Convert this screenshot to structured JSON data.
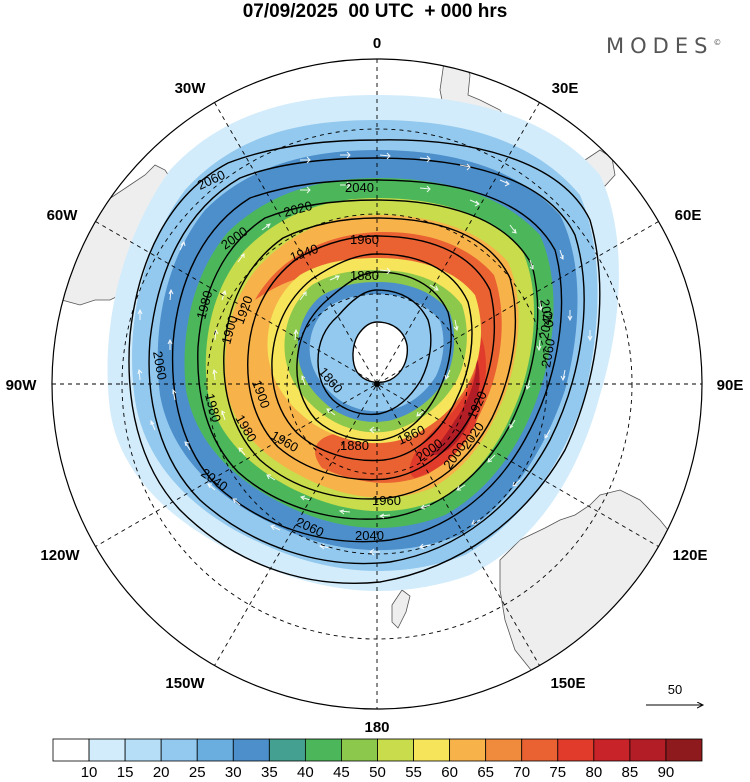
{
  "title": "07/09/2025  00 UTC  + 000 hrs",
  "logo": "MODES",
  "logo_mark": "©",
  "map": {
    "projection": "South polar stereographic",
    "longitude_labels": [
      "0",
      "30E",
      "60E",
      "90E",
      "120E",
      "150E",
      "180",
      "150W",
      "120W",
      "90W",
      "60W",
      "30W"
    ],
    "contour_labels": [
      "2060",
      "2040",
      "2020",
      "2000",
      "1980",
      "1960",
      "1940",
      "1920",
      "1900",
      "1880",
      "1860",
      "1860",
      "1880",
      "1900",
      "1920",
      "1960",
      "1980",
      "2000",
      "2020",
      "2040",
      "2060",
      "2040",
      "2060",
      "1960",
      "1980",
      "2000",
      "2020",
      "2040",
      "2060"
    ],
    "reference_vector": "50"
  },
  "colorbar": {
    "ticks": [
      "10",
      "15",
      "20",
      "25",
      "30",
      "35",
      "40",
      "45",
      "50",
      "55",
      "60",
      "65",
      "70",
      "75",
      "80",
      "85",
      "90"
    ],
    "colors": [
      "#ffffff",
      "#d3ecfb",
      "#b6dff7",
      "#93c9ee",
      "#6aaee0",
      "#4c8fcb",
      "#44a090",
      "#4cb75a",
      "#8cc84b",
      "#c8dc4c",
      "#f6e45a",
      "#f7b24a",
      "#f08a3c",
      "#ea6132",
      "#e03b2b",
      "#c9232a",
      "#b31e26",
      "#8e1a1e"
    ]
  },
  "colors": {
    "land": "#eeeeee",
    "coast": "#555555",
    "contour": "#000000",
    "arrows": "#ffffff"
  }
}
